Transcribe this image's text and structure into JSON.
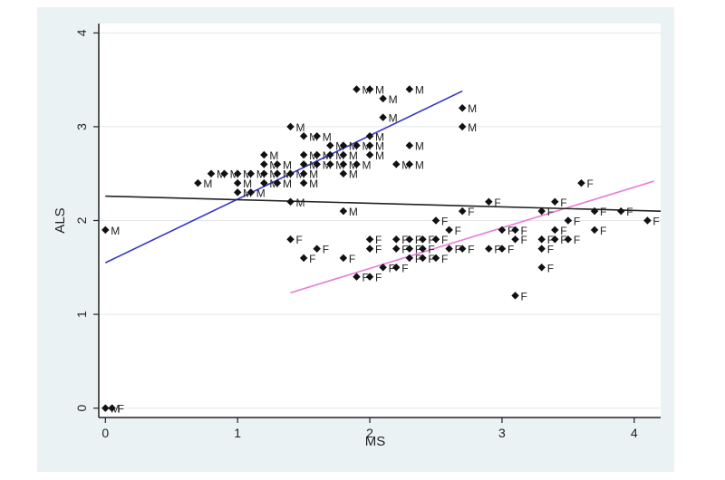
{
  "chart_data": {
    "type": "scatter",
    "title": "",
    "xlabel": "MS",
    "ylabel": "ALS",
    "xlim": [
      -0.05,
      4.2
    ],
    "ylim": [
      -0.1,
      4.1
    ],
    "xticks": [
      0,
      1,
      2,
      3,
      4
    ],
    "yticks": [
      0,
      1,
      2,
      3,
      4
    ],
    "grid": true,
    "colors": {
      "points": "#111111",
      "fit_M": "#3535c8",
      "fit_F": "#e87ad6",
      "fit_all": "#222222",
      "grid": "#e2e6ea",
      "frame_bg": "#eaf2f3"
    },
    "series": [
      {
        "label": "M",
        "points": [
          [
            0,
            1.9
          ],
          [
            0,
            0
          ],
          [
            0.7,
            2.4
          ],
          [
            0.8,
            2.5
          ],
          [
            0.9,
            2.5
          ],
          [
            1.0,
            2.5
          ],
          [
            1.0,
            2.4
          ],
          [
            1.0,
            2.3
          ],
          [
            1.1,
            2.5
          ],
          [
            1.1,
            2.3
          ],
          [
            1.2,
            2.7
          ],
          [
            1.2,
            2.6
          ],
          [
            1.2,
            2.5
          ],
          [
            1.2,
            2.4
          ],
          [
            1.3,
            2.6
          ],
          [
            1.3,
            2.5
          ],
          [
            1.3,
            2.4
          ],
          [
            1.4,
            3.0
          ],
          [
            1.4,
            2.5
          ],
          [
            1.4,
            2.2
          ],
          [
            1.5,
            2.9
          ],
          [
            1.5,
            2.7
          ],
          [
            1.5,
            2.6
          ],
          [
            1.5,
            2.5
          ],
          [
            1.5,
            2.4
          ],
          [
            1.6,
            2.9
          ],
          [
            1.6,
            2.7
          ],
          [
            1.6,
            2.6
          ],
          [
            1.7,
            2.8
          ],
          [
            1.7,
            2.7
          ],
          [
            1.7,
            2.6
          ],
          [
            1.8,
            2.8
          ],
          [
            1.8,
            2.7
          ],
          [
            1.8,
            2.6
          ],
          [
            1.8,
            2.5
          ],
          [
            1.8,
            2.1
          ],
          [
            1.9,
            3.4
          ],
          [
            1.9,
            2.8
          ],
          [
            1.9,
            2.6
          ],
          [
            2.0,
            3.4
          ],
          [
            2.0,
            2.9
          ],
          [
            2.0,
            2.8
          ],
          [
            2.0,
            2.7
          ],
          [
            2.1,
            3.3
          ],
          [
            2.1,
            3.1
          ],
          [
            2.2,
            2.6
          ],
          [
            2.3,
            3.4
          ],
          [
            2.3,
            2.8
          ],
          [
            2.3,
            2.6
          ],
          [
            2.7,
            3.2
          ],
          [
            2.7,
            3.0
          ]
        ]
      },
      {
        "label": "F",
        "points": [
          [
            0.05,
            0
          ],
          [
            1.4,
            1.8
          ],
          [
            1.5,
            1.6
          ],
          [
            1.6,
            1.7
          ],
          [
            1.8,
            1.6
          ],
          [
            1.9,
            1.4
          ],
          [
            2.0,
            1.8
          ],
          [
            2.0,
            1.7
          ],
          [
            2.0,
            1.4
          ],
          [
            2.1,
            1.5
          ],
          [
            2.2,
            1.8
          ],
          [
            2.2,
            1.7
          ],
          [
            2.2,
            1.5
          ],
          [
            2.3,
            1.8
          ],
          [
            2.3,
            1.7
          ],
          [
            2.3,
            1.6
          ],
          [
            2.4,
            1.8
          ],
          [
            2.4,
            1.7
          ],
          [
            2.4,
            1.6
          ],
          [
            2.5,
            2.0
          ],
          [
            2.5,
            1.8
          ],
          [
            2.5,
            1.6
          ],
          [
            2.6,
            1.9
          ],
          [
            2.6,
            1.7
          ],
          [
            2.7,
            2.1
          ],
          [
            2.7,
            1.7
          ],
          [
            2.9,
            2.2
          ],
          [
            2.9,
            1.7
          ],
          [
            3.0,
            1.9
          ],
          [
            3.0,
            1.7
          ],
          [
            3.1,
            1.9
          ],
          [
            3.1,
            1.8
          ],
          [
            3.1,
            1.2
          ],
          [
            3.3,
            2.1
          ],
          [
            3.3,
            1.8
          ],
          [
            3.3,
            1.7
          ],
          [
            3.3,
            1.5
          ],
          [
            3.4,
            2.2
          ],
          [
            3.4,
            1.9
          ],
          [
            3.4,
            1.8
          ],
          [
            3.5,
            2.0
          ],
          [
            3.5,
            1.8
          ],
          [
            3.6,
            2.4
          ],
          [
            3.7,
            2.1
          ],
          [
            3.7,
            1.9
          ],
          [
            3.9,
            2.1
          ],
          [
            4.1,
            2.0
          ]
        ]
      }
    ],
    "fit_lines": [
      {
        "group": "M",
        "x": [
          0,
          2.7
        ],
        "y": [
          1.55,
          3.38
        ]
      },
      {
        "group": "F",
        "x": [
          1.4,
          4.15
        ],
        "y": [
          1.23,
          2.42
        ]
      },
      {
        "group": "all",
        "x": [
          0,
          4.2
        ],
        "y": [
          2.26,
          2.1
        ]
      }
    ]
  }
}
